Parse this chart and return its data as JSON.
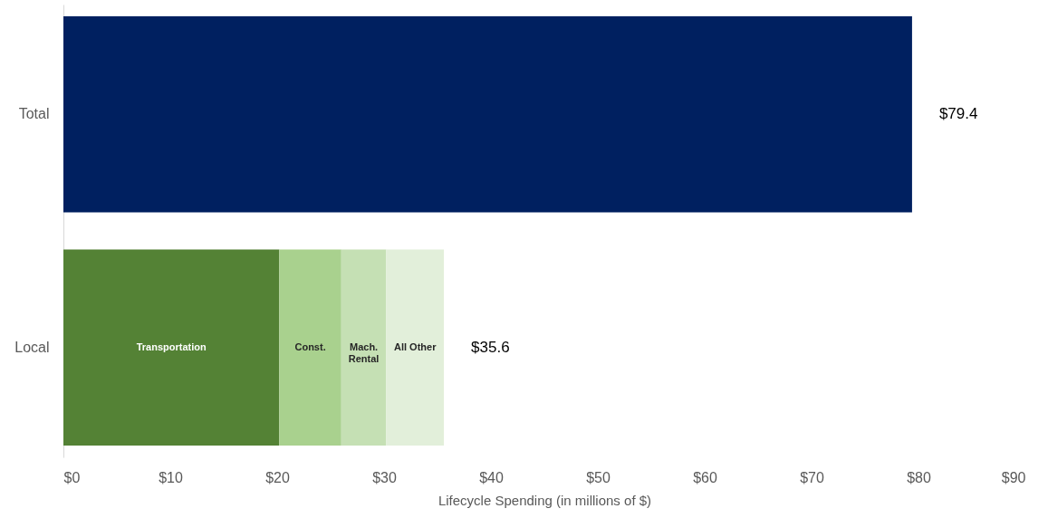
{
  "chart_data": {
    "type": "bar",
    "orientation": "horizontal",
    "stacked": true,
    "categories": [
      "Total",
      "Local"
    ],
    "series": [
      {
        "color": "#002060",
        "values": [
          79.4,
          null
        ]
      },
      {
        "name": "Transportation",
        "color": "#548235",
        "values": [
          null,
          20.2
        ]
      },
      {
        "name": "Const.",
        "color": "#a9d18e",
        "values": [
          null,
          5.8
        ]
      },
      {
        "name": "Mach. Rental",
        "color": "#c5e0b4",
        "values": [
          null,
          4.2
        ]
      },
      {
        "name": "All Other",
        "color": "#e2efda",
        "values": [
          null,
          5.4
        ]
      }
    ],
    "totals": [
      "$79.4",
      "$35.6"
    ],
    "xlabel": "Lifecycle Spending (in millions of $)",
    "xlim": [
      0,
      90
    ],
    "xticks": [
      {
        "value": 0,
        "label": "$0"
      },
      {
        "value": 10,
        "label": "$10"
      },
      {
        "value": 20,
        "label": "$20"
      },
      {
        "value": 30,
        "label": "$30"
      },
      {
        "value": 40,
        "label": "$40"
      },
      {
        "value": 50,
        "label": "$50"
      },
      {
        "value": 60,
        "label": "$60"
      },
      {
        "value": 70,
        "label": "$70"
      },
      {
        "value": 80,
        "label": "$80"
      },
      {
        "value": 90,
        "label": "$90"
      }
    ],
    "grid": false
  }
}
